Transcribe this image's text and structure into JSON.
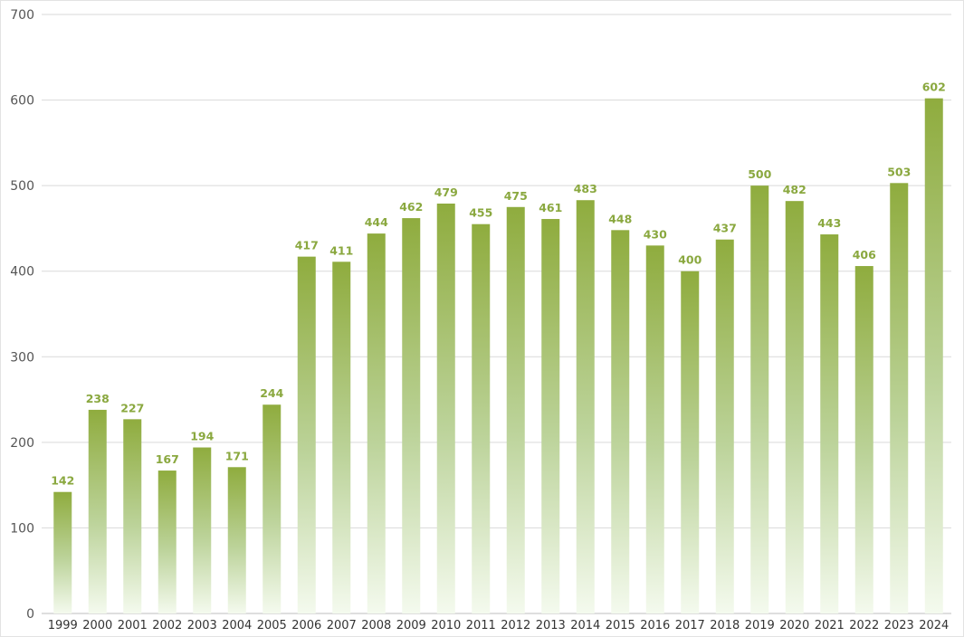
{
  "chart_data": {
    "type": "bar",
    "title": "",
    "xlabel": "",
    "ylabel": "",
    "ylim": [
      0,
      700
    ],
    "yticks": [
      0,
      100,
      200,
      300,
      400,
      500,
      600,
      700
    ],
    "categories": [
      "1999",
      "2000",
      "2001",
      "2002",
      "2003",
      "2004",
      "2005",
      "2006",
      "2007",
      "2008",
      "2009",
      "2010",
      "2011",
      "2012",
      "2013",
      "2014",
      "2015",
      "2016",
      "2017",
      "2018",
      "2019",
      "2020",
      "2021",
      "2022",
      "2023",
      "2024"
    ],
    "values": [
      142,
      238,
      227,
      167,
      194,
      171,
      244,
      417,
      411,
      444,
      462,
      479,
      455,
      475,
      461,
      483,
      448,
      430,
      400,
      437,
      500,
      482,
      443,
      406,
      503,
      602
    ],
    "grid": true,
    "legend": "none",
    "colors": {
      "bar_top": "#8fac3e",
      "bar_bottom": "#f4faee",
      "label": "#8aa83f",
      "grid": "#d9d9d9"
    }
  }
}
